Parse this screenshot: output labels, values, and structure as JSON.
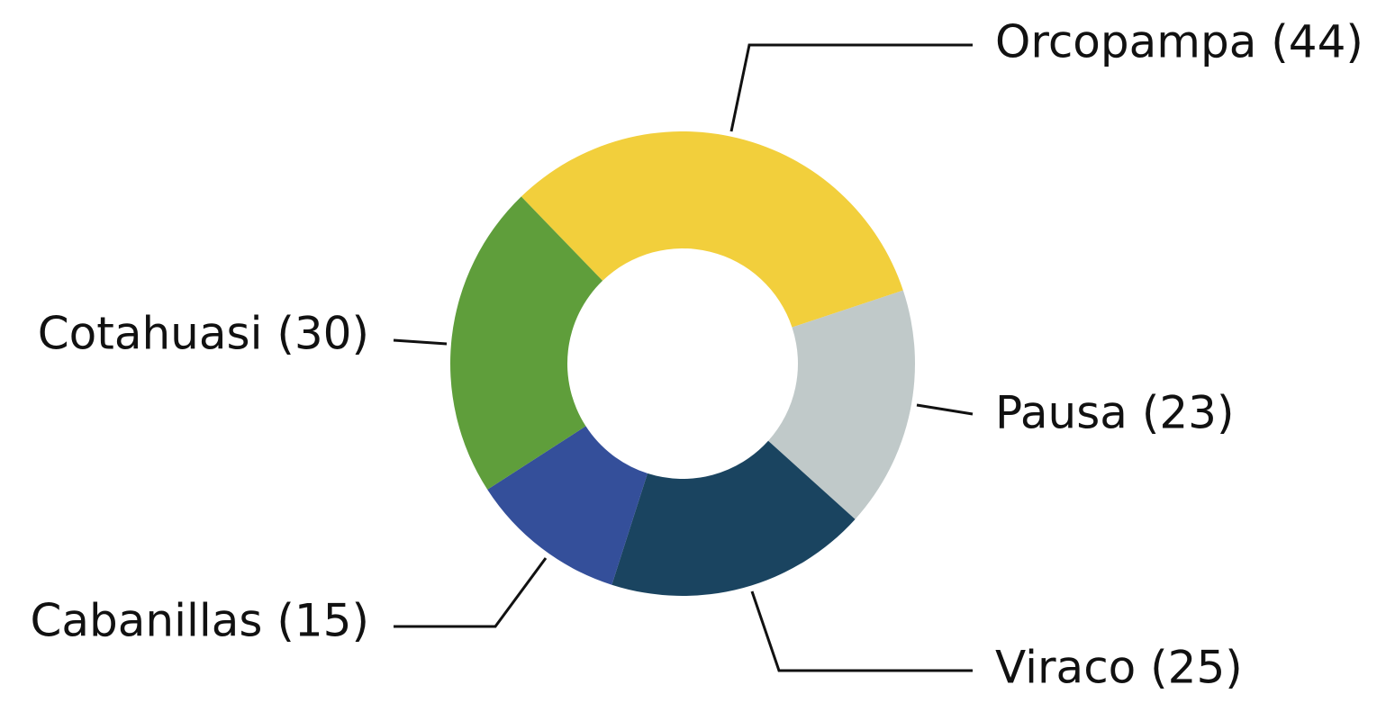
{
  "chart_data": {
    "type": "pie",
    "donut": true,
    "title": "",
    "legend": "none",
    "labels_outside": true,
    "slices": [
      {
        "label": "Orcopampa (44)",
        "category": "Orcopampa",
        "value": 44,
        "color": "#F2CF3C"
      },
      {
        "label": "Pausa (23)",
        "category": "Pausa",
        "value": 23,
        "color": "#C0C9C9"
      },
      {
        "label": "Viraco (25)",
        "category": "Viraco",
        "value": 25,
        "color": "#1A4460"
      },
      {
        "label": "Cabanillas (15)",
        "category": "Cabanillas",
        "value": 15,
        "color": "#344F9A"
      },
      {
        "label": "Cotahuasi (30)",
        "category": "Cotahuasi",
        "value": 30,
        "color": "#5F9E3B"
      }
    ]
  }
}
